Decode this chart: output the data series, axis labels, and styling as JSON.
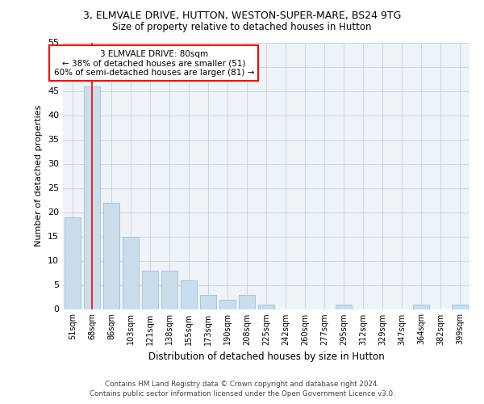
{
  "title1": "3, ELMVALE DRIVE, HUTTON, WESTON-SUPER-MARE, BS24 9TG",
  "title2": "Size of property relative to detached houses in Hutton",
  "xlabel": "Distribution of detached houses by size in Hutton",
  "ylabel": "Number of detached properties",
  "categories": [
    "51sqm",
    "68sqm",
    "86sqm",
    "103sqm",
    "121sqm",
    "138sqm",
    "155sqm",
    "173sqm",
    "190sqm",
    "208sqm",
    "225sqm",
    "242sqm",
    "260sqm",
    "277sqm",
    "295sqm",
    "312sqm",
    "329sqm",
    "347sqm",
    "364sqm",
    "382sqm",
    "399sqm"
  ],
  "values": [
    19,
    46,
    22,
    15,
    8,
    8,
    6,
    3,
    2,
    3,
    1,
    0,
    0,
    0,
    1,
    0,
    0,
    0,
    1,
    0,
    1
  ],
  "bar_color": "#c9dded",
  "bar_edge_color": "#a8c4d8",
  "ylim": [
    0,
    55
  ],
  "yticks": [
    0,
    5,
    10,
    15,
    20,
    25,
    30,
    35,
    40,
    45,
    50,
    55
  ],
  "red_line_x": 1.0,
  "annotation_text": "3 ELMVALE DRIVE: 80sqm\n← 38% of detached houses are smaller (51)\n60% of semi-detached houses are larger (81) →",
  "footer_text": "Contains HM Land Registry data © Crown copyright and database right 2024.\nContains public sector information licensed under the Open Government Licence v3.0.",
  "background_color": "#ffffff",
  "plot_bg_color": "#eef3f8",
  "grid_color": "#c8d0d8"
}
